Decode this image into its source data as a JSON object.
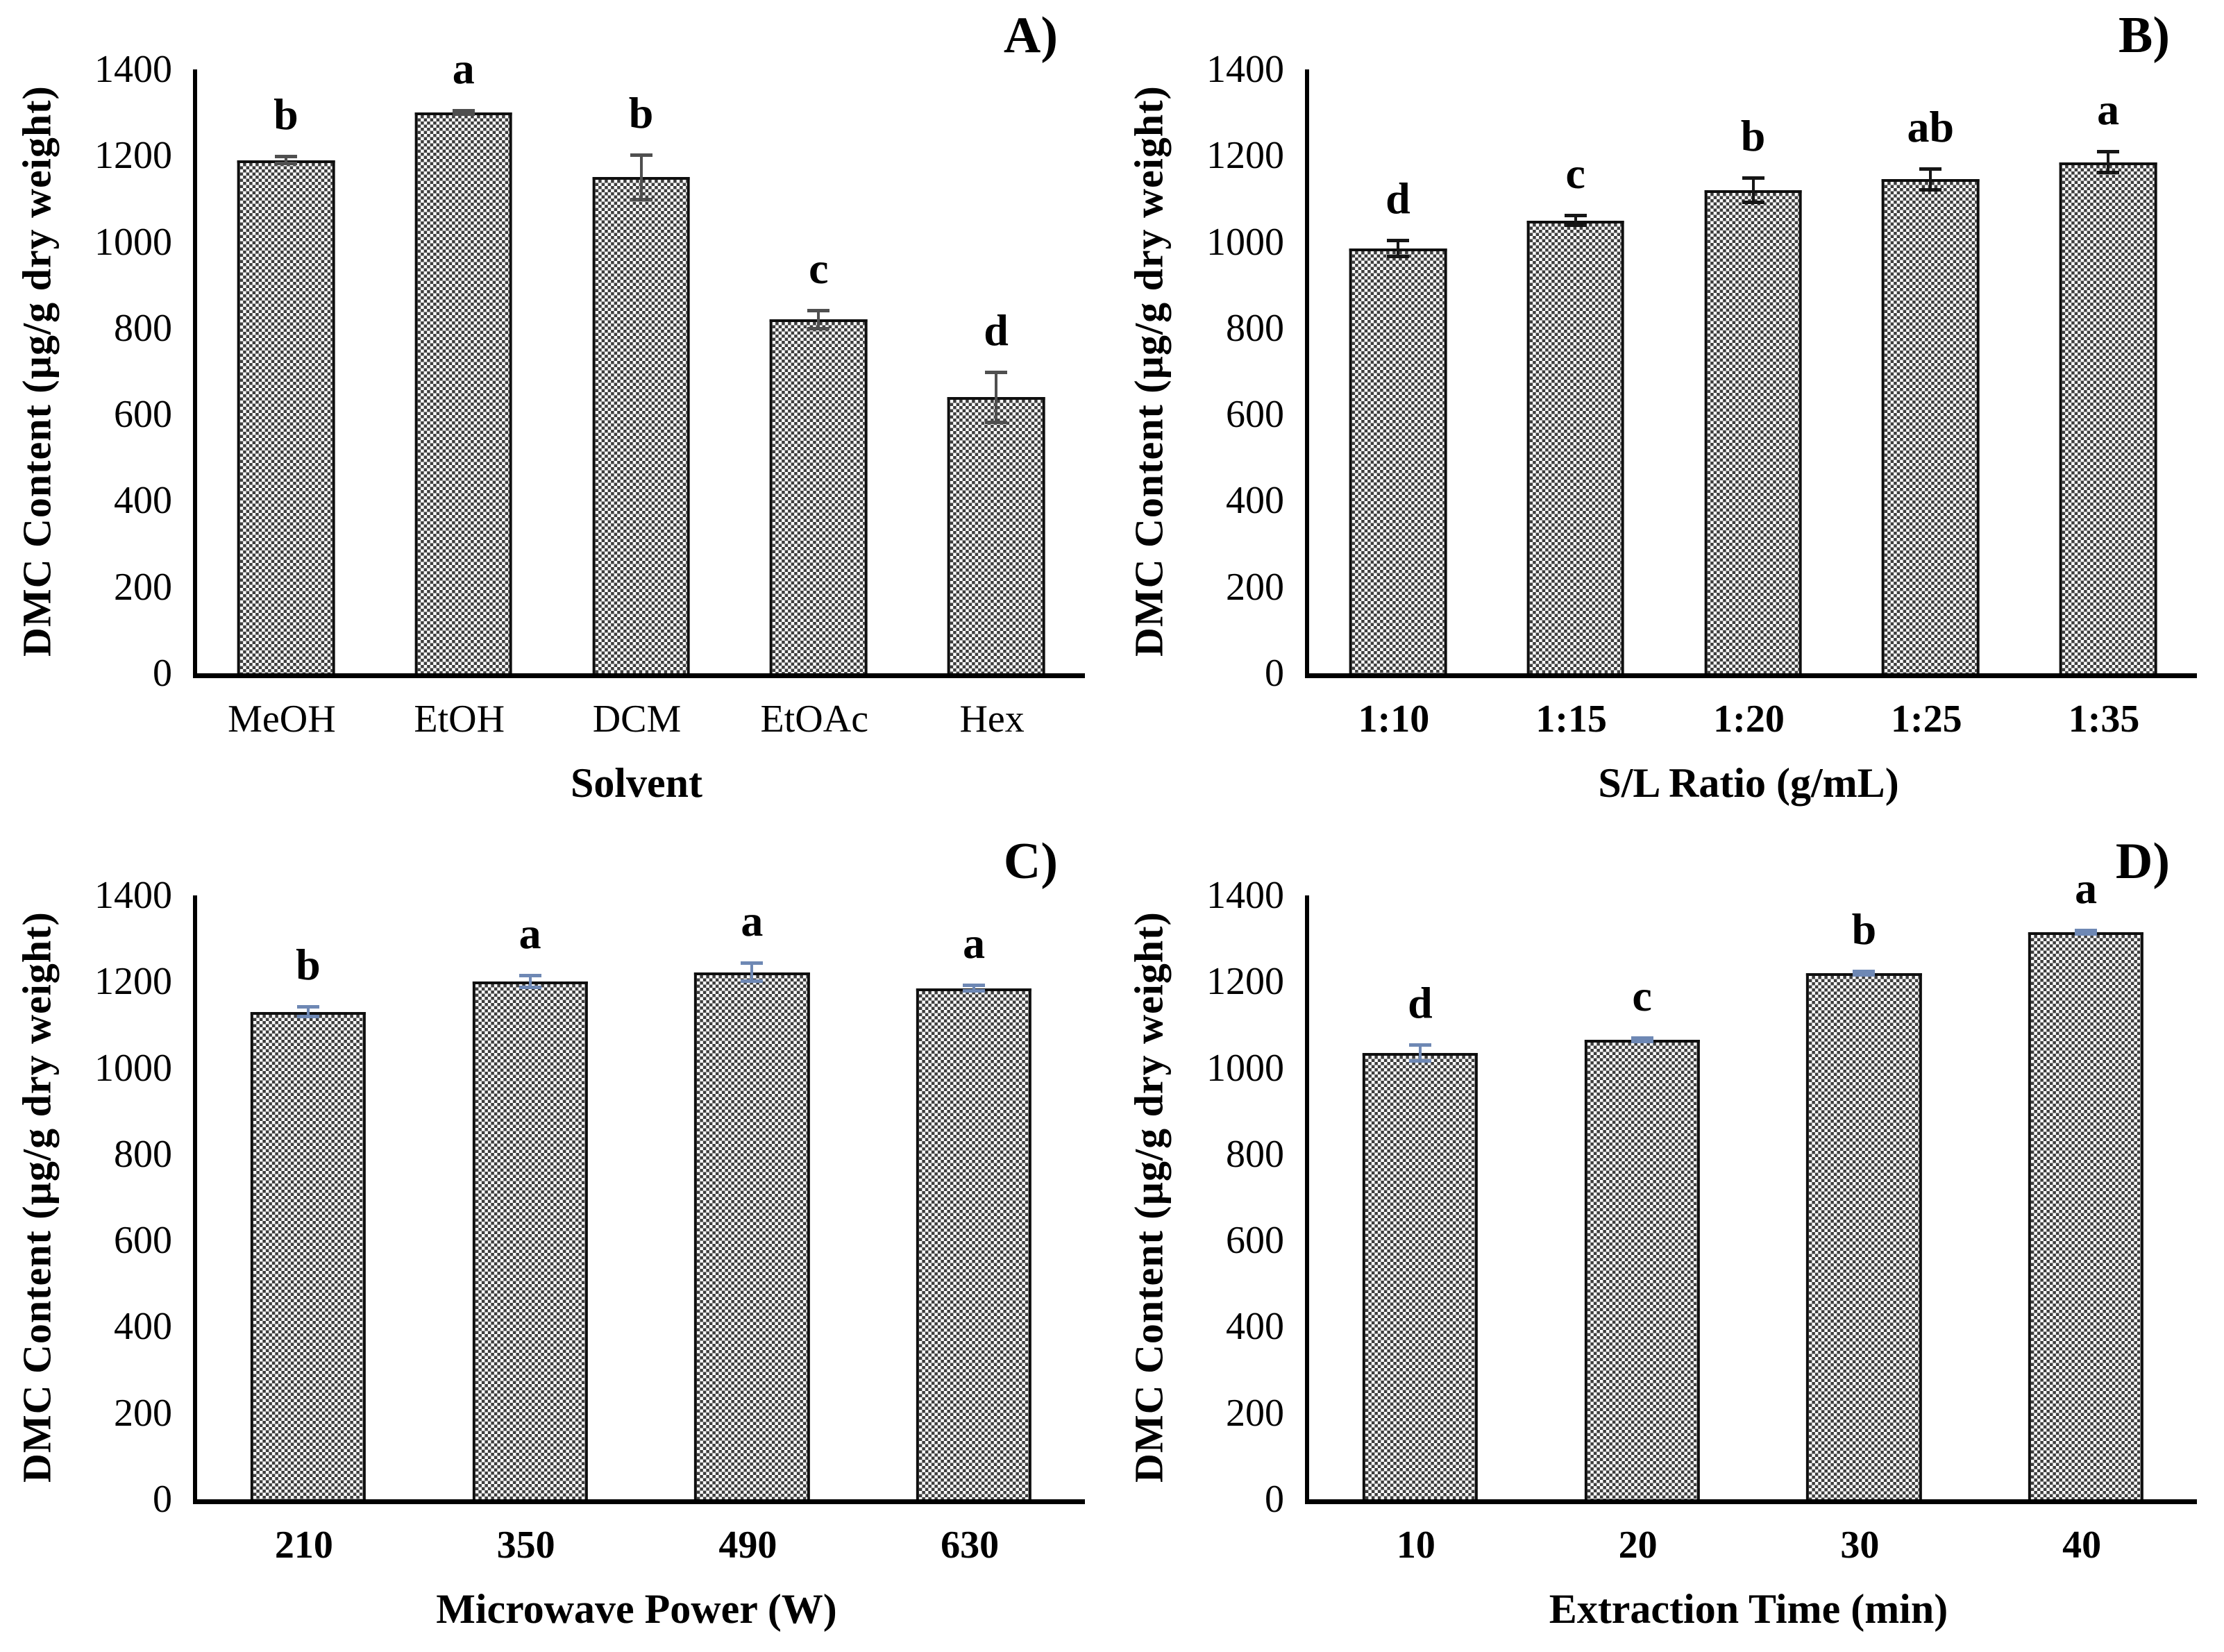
{
  "figure": {
    "shared_y_axis_label": "DMC Content (µg/g dry weight)",
    "y_axis_range": [
      0,
      1400
    ],
    "y_axis_tick_step": 200,
    "bar_fill": "checkerboard-gray-pattern",
    "bar_border_color": "#0f0f0f",
    "colors": {
      "text": "#000000",
      "error_bar_dark": "#4f4f4f",
      "error_bar_black": "#161616",
      "error_bar_blue": "#6e88b4"
    }
  },
  "chart_data": [
    {
      "type": "bar",
      "panel_label": "A)",
      "xlabel": "Solvent",
      "ylabel": "DMC Content (µg/g dry weight)",
      "ylim": [
        0,
        1400
      ],
      "ytick_step": 200,
      "yticks": [
        0,
        200,
        400,
        600,
        800,
        1000,
        1200,
        1400
      ],
      "categories": [
        "MeOH",
        "EtOH",
        "DCM",
        "EtOAc",
        "Hex"
      ],
      "values": [
        1190,
        1300,
        1150,
        820,
        640
      ],
      "errors": [
        12,
        8,
        55,
        25,
        62
      ],
      "sig_letters": [
        "b",
        "a",
        "b",
        "c",
        "d"
      ],
      "error_color": "#4f4f4f",
      "xtick_bold": false,
      "grid": false,
      "legend": null
    },
    {
      "type": "bar",
      "panel_label": "B)",
      "xlabel": "S/L Ratio (g/mL)",
      "ylabel": "DMC Content (µg/g dry weight)",
      "ylim": [
        0,
        1400
      ],
      "ytick_step": 200,
      "yticks": [
        0,
        200,
        400,
        600,
        800,
        1000,
        1200,
        1400
      ],
      "categories": [
        "1:10",
        "1:15",
        "1:20",
        "1:25",
        "1:35"
      ],
      "values": [
        985,
        1050,
        1120,
        1145,
        1185
      ],
      "errors": [
        22,
        15,
        32,
        28,
        28
      ],
      "sig_letters": [
        "d",
        "c",
        "b",
        "ab",
        "a"
      ],
      "error_color": "#161616",
      "xtick_bold": true,
      "grid": false,
      "legend": null
    },
    {
      "type": "bar",
      "panel_label": "C)",
      "xlabel": "Microwave Power (W)",
      "ylabel": "DMC Content (µg/g dry weight)",
      "ylim": [
        0,
        1400
      ],
      "ytick_step": 200,
      "yticks": [
        0,
        200,
        400,
        600,
        800,
        1000,
        1200,
        1400
      ],
      "categories": [
        "210",
        "350",
        "490",
        "630"
      ],
      "values": [
        1130,
        1200,
        1222,
        1185
      ],
      "errors": [
        15,
        18,
        25,
        10
      ],
      "sig_letters": [
        "b",
        "a",
        "a",
        "a"
      ],
      "error_color": "#6e88b4",
      "xtick_bold": true,
      "grid": false,
      "legend": null
    },
    {
      "type": "bar",
      "panel_label": "D)",
      "xlabel": "Extraction Time (min)",
      "ylabel": "DMC Content (µg/g dry weight)",
      "ylim": [
        0,
        1400
      ],
      "ytick_step": 200,
      "yticks": [
        0,
        200,
        400,
        600,
        800,
        1000,
        1200,
        1400
      ],
      "categories": [
        "10",
        "20",
        "30",
        "40"
      ],
      "values": [
        1035,
        1065,
        1220,
        1315
      ],
      "errors": [
        22,
        8,
        8,
        8
      ],
      "sig_letters": [
        "d",
        "c",
        "b",
        "a"
      ],
      "error_color": "#6e88b4",
      "xtick_bold": true,
      "grid": false,
      "legend": null
    }
  ]
}
